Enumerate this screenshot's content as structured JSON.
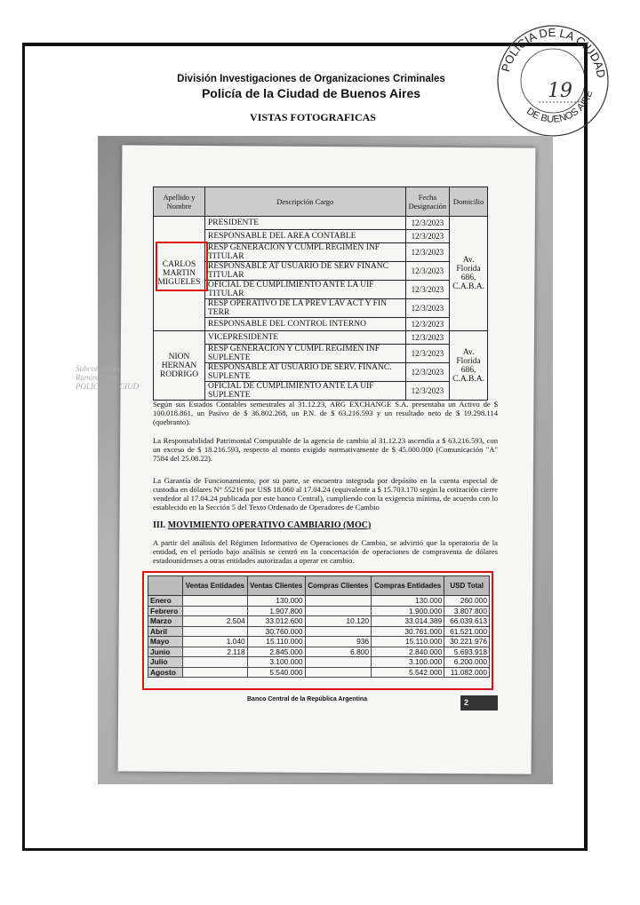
{
  "header": {
    "division": "División Investigaciones de Organizaciones Criminales",
    "police": "Policía de la Ciudad de Buenos Aires",
    "title": "VISTAS FOTOGRAFICAS"
  },
  "stamp": {
    "top": "POLICIA DE LA CIUDAD",
    "bottom": "DE BUENOS AIRES",
    "folio": "19"
  },
  "authorities_table": {
    "headers": [
      "Apellido y Nombre",
      "Descripción Cargo",
      "Fecha Designación",
      "Domicilio"
    ],
    "groups": [
      {
        "name": "CARLOS MARTIN MIGUELES",
        "domicilio": "Av. Florida 686, C.A.B.A.",
        "rows": [
          {
            "cargo": "PRESIDENTE",
            "fecha": "12/3/2023"
          },
          {
            "cargo": "RESPONSABLE DEL AREA CONTABLE",
            "fecha": "12/3/2023"
          },
          {
            "cargo": "RESP GENERACION Y CUMPL REGIMEN INF TITULAR",
            "fecha": "12/3/2023"
          },
          {
            "cargo": "RESPONSABLE AT USUARIO DE SERV FINANC TITULAR",
            "fecha": "12/3/2023"
          },
          {
            "cargo": "OFICIAL DE CUMPLIMIENTO ANTE LA UIF TITULAR",
            "fecha": "12/3/2023"
          },
          {
            "cargo": "RESP OPERATIVO DE LA PREV LAV ACT Y FIN TERR",
            "fecha": "12/3/2023"
          },
          {
            "cargo": "RESPONSABLE DEL CONTROL INTERNO",
            "fecha": "12/3/2023"
          }
        ]
      },
      {
        "name": "NION HERNAN RODRIGO",
        "domicilio": "Av. Florida 686, C.A.B.A.",
        "rows": [
          {
            "cargo": "VICEPRESIDENTE",
            "fecha": "12/3/2023"
          },
          {
            "cargo": "RESP GENERACION Y CUMPL REGIMEN INF SUPLENTE",
            "fecha": "12/3/2023"
          },
          {
            "cargo": "RESPONSABLE AT USUARIO DE SERV. FINANC. SUPLENTE",
            "fecha": "12/3/2023"
          },
          {
            "cargo": "OFICIAL DE CUMPLIMIENTO ANTE LA UIF SUPLENTE",
            "fecha": "12/3/2023"
          }
        ]
      }
    ]
  },
  "paragraphs": [
    "Según sus Estados Contables semestrales al 31.12.23, ARG EXCHANGE S.A. presentaba un Activo de $ 100.018.861, un Pasivo de $ 36.802.268, un P.N. de $ 63.216.593 y un resultado neto de $ 19.298.114 (quebranto).",
    "La Responsabilidad Patrimonial Computable de la agencia de cambio al 31.12.23 ascendía a $ 63.216.593, con un exceso de $ 18.216.593, respecto al monto exigido normativamente de $ 45.000.000 (Comunicación \"A\" 7584 del 25.08.22).",
    "La Garantía de Funcionamiento, por su parte, se encuentra integrada por depósito en la cuenta especial de custodia en dólares N° 55216 por US$ 18.060 al 17.04.24 (equivalente a $ 15.703.170 según la cotización cierre vendedor al 17.04.24 publicada por este banco Central), cumpliendo con la exigencia mínima, de acuerdo con lo establecido en la Sección 5 del Texto Ordenado de Operadores de Cambio",
    "A partir del análisis del Régimen Informativo de Operaciones de Cambio, se advirtió que la operatoria de la entidad, en el período bajo análisis se centró en la concertación de operaciones de compraventa de dólares estadounidenses a otras entidades autorizadas a operar en cambio."
  ],
  "section": {
    "number": "III.",
    "title": "MOVIMIENTO OPERATIVO CAMBIARIO (MOC)"
  },
  "moc_table": {
    "headers": [
      "",
      "Ventas Entidades",
      "Ventas Clientes",
      "Compras Clientes",
      "Compras Entidades",
      "USD Total"
    ],
    "rows": [
      [
        "Enero",
        "",
        "130.000",
        "",
        "130.000",
        "260.000"
      ],
      [
        "Febrero",
        "",
        "1.907.800",
        "",
        "1.900.000",
        "3.807.800"
      ],
      [
        "Marzo",
        "2.504",
        "33.012.600",
        "10.120",
        "33.014.389",
        "66.039.613"
      ],
      [
        "Abril",
        "",
        "30.760.000",
        "",
        "30.761.000",
        "61.521.000"
      ],
      [
        "Mayo",
        "1.040",
        "15.110.000",
        "936",
        "15.110.000",
        "30.221.976"
      ],
      [
        "Junio",
        "2.118",
        "2.845.000",
        "6.800",
        "2.840.000",
        "5.693.918"
      ],
      [
        "Julio",
        "",
        "3.100.000",
        "",
        "3.100.000",
        "6.200.000"
      ],
      [
        "Agosto",
        "",
        "5.540.000",
        "",
        "5.542.000",
        "11.082.000"
      ]
    ]
  },
  "footer": {
    "bank": "Banco Central de la República Argentina",
    "page": "2"
  },
  "highlight_color": "#e01010"
}
